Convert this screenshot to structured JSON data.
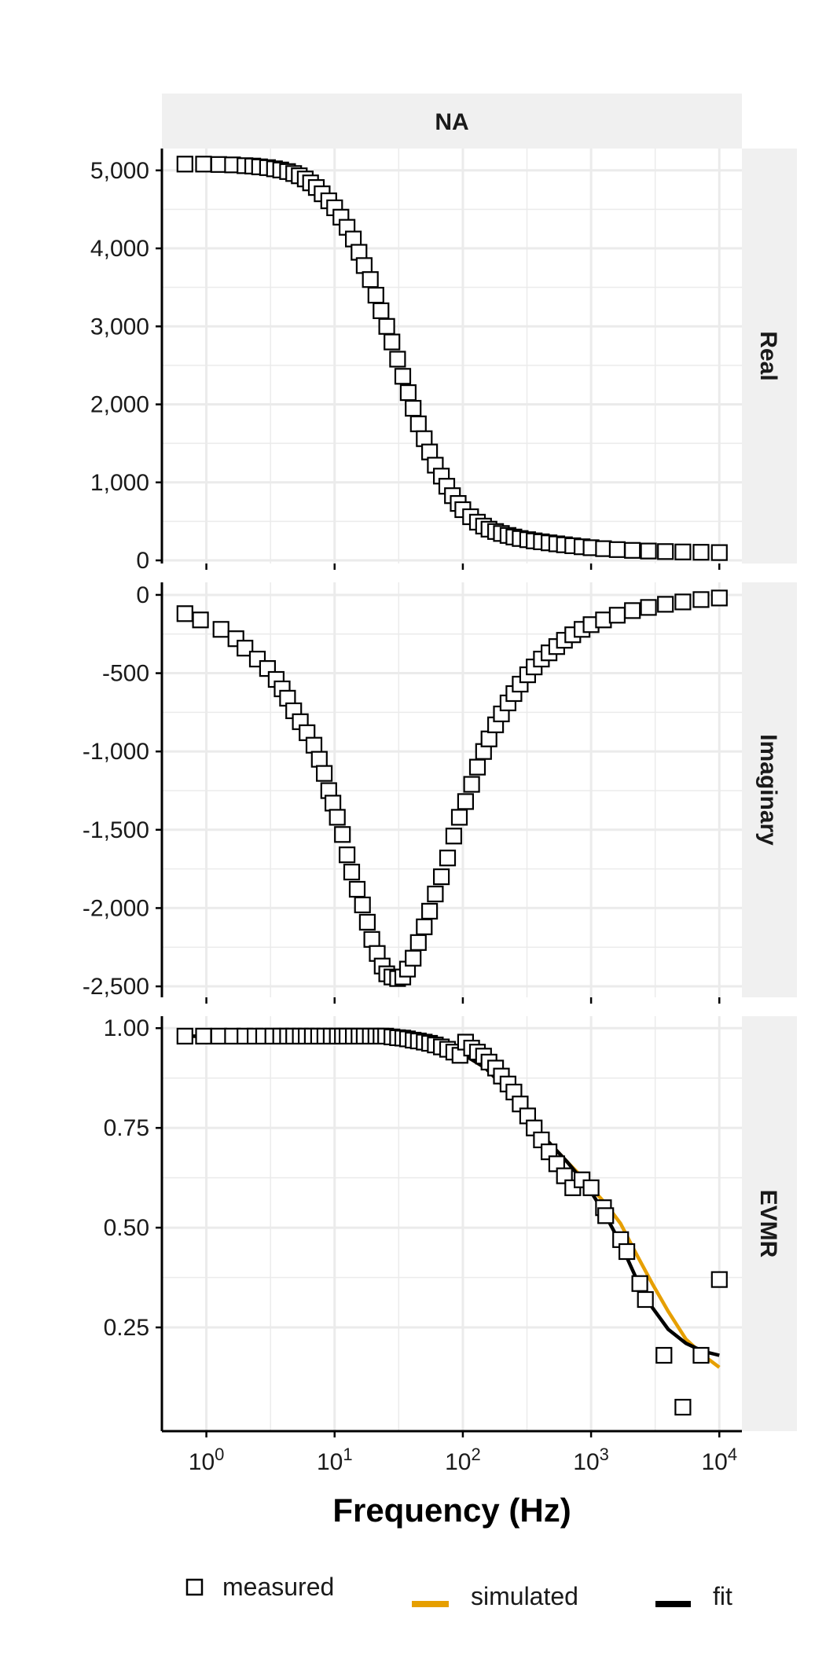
{
  "chart_data": {
    "type": "scatter",
    "facet_title": "NA",
    "xlabel": "Frequency (Hz)",
    "x_scale": "log10",
    "xlim": [
      0.45,
      15000
    ],
    "x_ticks": [
      1,
      10,
      100,
      1000,
      10000
    ],
    "x_tick_labels": [
      {
        "base": "10",
        "exp": "0"
      },
      {
        "base": "10",
        "exp": "1"
      },
      {
        "base": "10",
        "exp": "2"
      },
      {
        "base": "10",
        "exp": "3"
      },
      {
        "base": "10",
        "exp": "4"
      }
    ],
    "grid": true,
    "legend_position": "bottom",
    "legend": [
      {
        "key": "measured",
        "label": "measured",
        "shape": "open-square",
        "color": "#000000"
      },
      {
        "key": "simulated",
        "label": "simulated",
        "shape": "line",
        "color": "#E69F00"
      },
      {
        "key": "fit",
        "label": "fit",
        "shape": "line",
        "color": "#000000"
      }
    ],
    "colors": {
      "strip_background": "#F0F0F0",
      "grid": "#EBEBEB",
      "axis": "#000000",
      "simulated": "#E69F00",
      "fit": "#000000"
    },
    "panels": [
      {
        "strip_label": "Real",
        "ylim": [
          -40,
          5280
        ],
        "y_ticks": [
          0,
          1000,
          2000,
          3000,
          4000,
          5000
        ],
        "y_tick_labels": [
          "0",
          "1,000",
          "2,000",
          "3,000",
          "4,000",
          "5,000"
        ],
        "measured": [
          [
            0.68,
            5080
          ],
          [
            0.95,
            5080
          ],
          [
            1.25,
            5075
          ],
          [
            1.6,
            5070
          ],
          [
            2.0,
            5060
          ],
          [
            2.3,
            5055
          ],
          [
            2.6,
            5045
          ],
          [
            3.0,
            5035
          ],
          [
            3.4,
            5020
          ],
          [
            3.8,
            5005
          ],
          [
            4.3,
            4985
          ],
          [
            4.8,
            4960
          ],
          [
            5.3,
            4930
          ],
          [
            5.9,
            4890
          ],
          [
            6.5,
            4840
          ],
          [
            7.2,
            4780
          ],
          [
            8.0,
            4700
          ],
          [
            9.0,
            4610
          ],
          [
            10.0,
            4520
          ],
          [
            11.2,
            4400
          ],
          [
            12.5,
            4270
          ],
          [
            14,
            4120
          ],
          [
            15.5,
            3950
          ],
          [
            17,
            3780
          ],
          [
            19,
            3600
          ],
          [
            21,
            3400
          ],
          [
            23,
            3200
          ],
          [
            25.5,
            3000
          ],
          [
            28,
            2800
          ],
          [
            31,
            2580
          ],
          [
            34,
            2360
          ],
          [
            37.5,
            2150
          ],
          [
            41,
            1950
          ],
          [
            45,
            1750
          ],
          [
            50,
            1560
          ],
          [
            55,
            1390
          ],
          [
            61,
            1220
          ],
          [
            68,
            1080
          ],
          [
            75,
            950
          ],
          [
            83,
            830
          ],
          [
            92,
            730
          ],
          [
            100,
            650
          ],
          [
            115,
            560
          ],
          [
            130,
            490
          ],
          [
            145,
            440
          ],
          [
            160,
            400
          ],
          [
            180,
            370
          ],
          [
            200,
            345
          ],
          [
            225,
            320
          ],
          [
            250,
            300
          ],
          [
            280,
            280
          ],
          [
            320,
            265
          ],
          [
            360,
            250
          ],
          [
            410,
            238
          ],
          [
            470,
            225
          ],
          [
            540,
            212
          ],
          [
            620,
            200
          ],
          [
            720,
            188
          ],
          [
            850,
            175
          ],
          [
            1000,
            163
          ],
          [
            1250,
            150
          ],
          [
            1600,
            138
          ],
          [
            2100,
            128
          ],
          [
            2800,
            120
          ],
          [
            3800,
            113
          ],
          [
            5200,
            108
          ],
          [
            7200,
            104
          ],
          [
            10000,
            100
          ]
        ]
      },
      {
        "strip_label": "Imaginary",
        "ylim": [
          -2570,
          80
        ],
        "y_ticks": [
          -2500,
          -2000,
          -1500,
          -1000,
          -500,
          0
        ],
        "y_tick_labels": [
          "-2,500",
          "-2,000",
          "-1,500",
          "-1,000",
          "-500",
          "0"
        ],
        "measured": [
          [
            0.68,
            -120
          ],
          [
            0.9,
            -160
          ],
          [
            1.3,
            -220
          ],
          [
            1.7,
            -280
          ],
          [
            2.0,
            -340
          ],
          [
            2.5,
            -410
          ],
          [
            3.0,
            -470
          ],
          [
            3.5,
            -540
          ],
          [
            3.9,
            -600
          ],
          [
            4.3,
            -660
          ],
          [
            4.8,
            -740
          ],
          [
            5.4,
            -810
          ],
          [
            6.1,
            -880
          ],
          [
            6.9,
            -960
          ],
          [
            7.6,
            -1050
          ],
          [
            8.3,
            -1140
          ],
          [
            9.0,
            -1250
          ],
          [
            9.7,
            -1330
          ],
          [
            10.5,
            -1420
          ],
          [
            11.5,
            -1530
          ],
          [
            12.5,
            -1660
          ],
          [
            13.6,
            -1770
          ],
          [
            15,
            -1880
          ],
          [
            16.5,
            -1980
          ],
          [
            18,
            -2090
          ],
          [
            19.5,
            -2200
          ],
          [
            21.5,
            -2290
          ],
          [
            23.5,
            -2370
          ],
          [
            25.5,
            -2420
          ],
          [
            28,
            -2440
          ],
          [
            31,
            -2450
          ],
          [
            34,
            -2440
          ],
          [
            37,
            -2390
          ],
          [
            41,
            -2320
          ],
          [
            45,
            -2220
          ],
          [
            50,
            -2120
          ],
          [
            55,
            -2020
          ],
          [
            61,
            -1910
          ],
          [
            68,
            -1800
          ],
          [
            76,
            -1680
          ],
          [
            85,
            -1540
          ],
          [
            94,
            -1420
          ],
          [
            105,
            -1320
          ],
          [
            117,
            -1210
          ],
          [
            130,
            -1100
          ],
          [
            145,
            -1000
          ],
          [
            160,
            -920
          ],
          [
            180,
            -830
          ],
          [
            200,
            -760
          ],
          [
            225,
            -690
          ],
          [
            250,
            -630
          ],
          [
            280,
            -570
          ],
          [
            320,
            -510
          ],
          [
            360,
            -460
          ],
          [
            410,
            -410
          ],
          [
            470,
            -370
          ],
          [
            540,
            -330
          ],
          [
            620,
            -290
          ],
          [
            720,
            -255
          ],
          [
            850,
            -220
          ],
          [
            1000,
            -190
          ],
          [
            1250,
            -160
          ],
          [
            1600,
            -130
          ],
          [
            2100,
            -100
          ],
          [
            2800,
            -80
          ],
          [
            3800,
            -60
          ],
          [
            5200,
            -45
          ],
          [
            7200,
            -30
          ],
          [
            10000,
            -20
          ]
        ]
      },
      {
        "strip_label": "EVMR",
        "ylim": [
          -0.01,
          1.03
        ],
        "y_ticks": [
          0.25,
          0.5,
          0.75,
          1.0
        ],
        "y_tick_labels": [
          "0.25",
          "0.50",
          "0.75",
          "1.00"
        ],
        "measured": [
          [
            0.68,
            0.98
          ],
          [
            0.95,
            0.98
          ],
          [
            1.25,
            0.98
          ],
          [
            1.6,
            0.98
          ],
          [
            2.0,
            0.98
          ],
          [
            2.4,
            0.98
          ],
          [
            2.8,
            0.98
          ],
          [
            3.3,
            0.98
          ],
          [
            3.8,
            0.98
          ],
          [
            4.3,
            0.98
          ],
          [
            4.8,
            0.98
          ],
          [
            5.4,
            0.98
          ],
          [
            6.0,
            0.98
          ],
          [
            6.7,
            0.98
          ],
          [
            7.5,
            0.98
          ],
          [
            8.4,
            0.98
          ],
          [
            9.4,
            0.98
          ],
          [
            10.5,
            0.98
          ],
          [
            11.5,
            0.98
          ],
          [
            12.5,
            0.98
          ],
          [
            14,
            0.98
          ],
          [
            15.5,
            0.98
          ],
          [
            17,
            0.98
          ],
          [
            19,
            0.98
          ],
          [
            21,
            0.98
          ],
          [
            23,
            0.98
          ],
          [
            25,
            0.98
          ],
          [
            28,
            0.978
          ],
          [
            31,
            0.976
          ],
          [
            34,
            0.975
          ],
          [
            37,
            0.973
          ],
          [
            41,
            0.97
          ],
          [
            45,
            0.968
          ],
          [
            50,
            0.965
          ],
          [
            55,
            0.962
          ],
          [
            61,
            0.958
          ],
          [
            68,
            0.953
          ],
          [
            76,
            0.947
          ],
          [
            85,
            0.94
          ],
          [
            95,
            0.932
          ],
          [
            105,
            0.965
          ],
          [
            117,
            0.95
          ],
          [
            130,
            0.94
          ],
          [
            145,
            0.93
          ],
          [
            160,
            0.915
          ],
          [
            180,
            0.9
          ],
          [
            200,
            0.88
          ],
          [
            225,
            0.86
          ],
          [
            250,
            0.84
          ],
          [
            280,
            0.81
          ],
          [
            320,
            0.78
          ],
          [
            360,
            0.75
          ],
          [
            410,
            0.72
          ],
          [
            470,
            0.69
          ],
          [
            540,
            0.66
          ],
          [
            620,
            0.63
          ],
          [
            720,
            0.6
          ],
          [
            850,
            0.62
          ],
          [
            1000,
            0.6
          ],
          [
            1250,
            0.55
          ],
          [
            1300,
            0.53
          ],
          [
            1700,
            0.47
          ],
          [
            1900,
            0.44
          ],
          [
            2400,
            0.36
          ],
          [
            2650,
            0.32
          ],
          [
            3700,
            0.18
          ],
          [
            5200,
            0.05
          ],
          [
            7200,
            0.18
          ],
          [
            10000,
            0.37
          ]
        ],
        "simulated": [
          [
            0.68,
            0.98
          ],
          [
            10,
            0.978
          ],
          [
            30,
            0.97
          ],
          [
            60,
            0.955
          ],
          [
            100,
            0.935
          ],
          [
            150,
            0.9
          ],
          [
            200,
            0.86
          ],
          [
            300,
            0.79
          ],
          [
            450,
            0.72
          ],
          [
            650,
            0.665
          ],
          [
            800,
            0.635
          ],
          [
            1000,
            0.6
          ],
          [
            1300,
            0.56
          ],
          [
            1700,
            0.51
          ],
          [
            2200,
            0.44
          ],
          [
            3000,
            0.36
          ],
          [
            4000,
            0.29
          ],
          [
            5500,
            0.22
          ],
          [
            7500,
            0.18
          ],
          [
            10000,
            0.15
          ]
        ],
        "fit": [
          [
            0.68,
            0.98
          ],
          [
            10,
            0.978
          ],
          [
            30,
            0.97
          ],
          [
            60,
            0.955
          ],
          [
            100,
            0.935
          ],
          [
            150,
            0.9
          ],
          [
            200,
            0.86
          ],
          [
            300,
            0.79
          ],
          [
            450,
            0.72
          ],
          [
            650,
            0.665
          ],
          [
            800,
            0.63
          ],
          [
            1000,
            0.59
          ],
          [
            1300,
            0.53
          ],
          [
            1700,
            0.46
          ],
          [
            2200,
            0.38
          ],
          [
            3000,
            0.3
          ],
          [
            4000,
            0.245
          ],
          [
            5500,
            0.21
          ],
          [
            7500,
            0.19
          ],
          [
            10000,
            0.18
          ]
        ]
      }
    ]
  }
}
